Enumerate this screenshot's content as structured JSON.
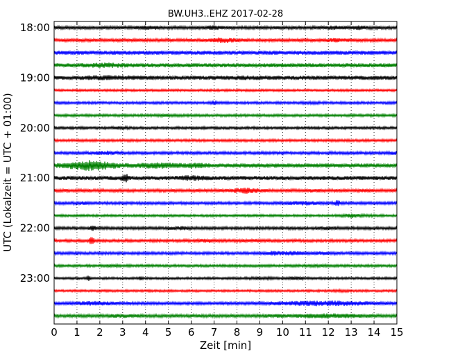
{
  "chart_data": {
    "type": "line",
    "subtype": "helicorder",
    "title": "BW.UH3..EHZ 2017-02-28",
    "xlabel": "Zeit  [min]",
    "ylabel": "UTC (Lokalzeit = UTC + 01:00)",
    "xlim": [
      0,
      15
    ],
    "x_ticks": [
      "0",
      "1",
      "2",
      "3",
      "4",
      "5",
      "6",
      "7",
      "8",
      "9",
      "10",
      "11",
      "12",
      "13",
      "14",
      "15"
    ],
    "y_tick_labels": [
      "18:00",
      "19:00",
      "20:00",
      "21:00",
      "22:00",
      "23:00"
    ],
    "y_tick_trace_index": [
      0,
      4,
      8,
      12,
      16,
      20
    ],
    "trace_interval_min": 15,
    "grid": "vertical dotted at each minute",
    "color_cycle": [
      "#000000",
      "#ff0000",
      "#0000ff",
      "#008000"
    ],
    "series": [
      {
        "start": "18:00",
        "amplitude": 0.55,
        "events": [
          [
            4.1,
            1.5,
            0.3
          ],
          [
            7.0,
            1.6,
            0.2
          ],
          [
            12.2,
            1.4,
            0.4
          ],
          [
            13.4,
            1.5,
            0.2
          ]
        ]
      },
      {
        "start": "18:15",
        "amplitude": 0.55,
        "events": [
          [
            7.4,
            1.8,
            0.5
          ],
          [
            12.3,
            1.4,
            0.4
          ]
        ]
      },
      {
        "start": "18:30",
        "amplitude": 0.7,
        "events": []
      },
      {
        "start": "18:45",
        "amplitude": 0.7,
        "events": [
          [
            2.2,
            1.4,
            0.5
          ]
        ]
      },
      {
        "start": "19:00",
        "amplitude": 0.7,
        "events": [
          [
            2.4,
            1.3,
            0.8
          ],
          [
            8.4,
            1.2,
            0.5
          ]
        ]
      },
      {
        "start": "19:15",
        "amplitude": 0.4,
        "events": []
      },
      {
        "start": "19:30",
        "amplitude": 0.45,
        "events": [
          [
            7.0,
            2.0,
            0.1
          ],
          [
            11.3,
            1.3,
            0.3
          ]
        ]
      },
      {
        "start": "19:45",
        "amplitude": 0.45,
        "events": [
          [
            5.0,
            1.3,
            0.3
          ]
        ]
      },
      {
        "start": "20:00",
        "amplitude": 0.45,
        "events": [
          [
            2.9,
            1.4,
            0.2
          ]
        ]
      },
      {
        "start": "20:15",
        "amplitude": 0.45,
        "events": []
      },
      {
        "start": "20:30",
        "amplitude": 0.5,
        "events": [
          [
            2.2,
            1.6,
            0.4
          ],
          [
            14.9,
            1.4,
            0.2
          ]
        ]
      },
      {
        "start": "20:45",
        "amplitude": 0.7,
        "events": [
          [
            1.6,
            2.7,
            0.7
          ],
          [
            4.5,
            1.6,
            0.8
          ],
          [
            5.4,
            1.3,
            0.4
          ],
          [
            6.2,
            1.5,
            0.4
          ]
        ]
      },
      {
        "start": "21:00",
        "amplitude": 0.7,
        "events": [
          [
            3.1,
            2.5,
            0.1
          ],
          [
            6.0,
            1.4,
            0.4
          ]
        ]
      },
      {
        "start": "21:15",
        "amplitude": 0.55,
        "events": [
          [
            8.4,
            2.0,
            0.4
          ],
          [
            11.3,
            1.3,
            0.3
          ],
          [
            13.6,
            1.3,
            0.2
          ]
        ]
      },
      {
        "start": "21:30",
        "amplitude": 0.5,
        "events": [
          [
            1.3,
            1.3,
            0.2
          ],
          [
            10.9,
            1.6,
            0.5
          ],
          [
            12.4,
            2.2,
            0.1
          ]
        ]
      },
      {
        "start": "21:45",
        "amplitude": 0.4,
        "events": [
          [
            13.0,
            2.0,
            0.3
          ],
          [
            13.7,
            1.3,
            0.3
          ]
        ]
      },
      {
        "start": "22:00",
        "amplitude": 0.5,
        "events": [
          [
            1.7,
            2.0,
            0.1
          ],
          [
            5.5,
            1.5,
            0.3
          ],
          [
            12.0,
            1.4,
            0.3
          ]
        ]
      },
      {
        "start": "22:15",
        "amplitude": 0.5,
        "events": [
          [
            1.65,
            4.0,
            0.06
          ],
          [
            6.7,
            1.5,
            0.3
          ],
          [
            8.6,
            1.4,
            0.3
          ]
        ]
      },
      {
        "start": "22:30",
        "amplitude": 0.5,
        "events": [
          [
            9.6,
            1.7,
            0.3
          ],
          [
            10.4,
            1.6,
            0.4
          ],
          [
            11.8,
            1.4,
            0.3
          ]
        ]
      },
      {
        "start": "22:45",
        "amplitude": 0.45,
        "events": [
          [
            2.5,
            1.3,
            0.2
          ],
          [
            11.5,
            1.3,
            0.3
          ]
        ]
      },
      {
        "start": "23:00",
        "amplitude": 0.4,
        "events": [
          [
            1.5,
            2.5,
            0.05
          ],
          [
            3.8,
            2.6,
            0.05
          ],
          [
            9.0,
            1.5,
            0.4
          ],
          [
            10.5,
            1.6,
            0.3
          ]
        ]
      },
      {
        "start": "23:15",
        "amplitude": 0.4,
        "events": [
          [
            12.5,
            1.3,
            0.3
          ]
        ]
      },
      {
        "start": "23:30",
        "amplitude": 0.5,
        "events": [
          [
            1.8,
            1.7,
            0.6
          ],
          [
            11.8,
            2.0,
            1.5
          ]
        ]
      },
      {
        "start": "23:45",
        "amplitude": 0.55,
        "events": [
          [
            3.0,
            1.3,
            0.5
          ],
          [
            12.0,
            1.6,
            1.0
          ],
          [
            9.8,
            1.3,
            0.4
          ]
        ]
      }
    ]
  }
}
